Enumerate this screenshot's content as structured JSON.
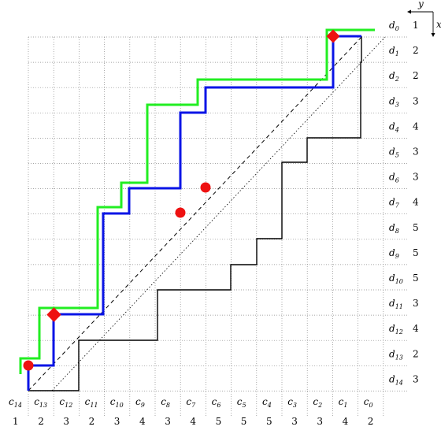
{
  "axes": {
    "y_label": "y",
    "x_label": "x"
  },
  "rows": [
    {
      "label": "d",
      "sub": "0",
      "value": "1"
    },
    {
      "label": "d",
      "sub": "1",
      "value": "2"
    },
    {
      "label": "d",
      "sub": "2",
      "value": "2"
    },
    {
      "label": "d",
      "sub": "3",
      "value": "3"
    },
    {
      "label": "d",
      "sub": "4",
      "value": "4"
    },
    {
      "label": "d",
      "sub": "5",
      "value": "3"
    },
    {
      "label": "d",
      "sub": "6",
      "value": "3"
    },
    {
      "label": "d",
      "sub": "7",
      "value": "4"
    },
    {
      "label": "d",
      "sub": "8",
      "value": "5"
    },
    {
      "label": "d",
      "sub": "9",
      "value": "5"
    },
    {
      "label": "d",
      "sub": "10",
      "value": "5"
    },
    {
      "label": "d",
      "sub": "11",
      "value": "3"
    },
    {
      "label": "d",
      "sub": "12",
      "value": "4"
    },
    {
      "label": "d",
      "sub": "13",
      "value": "2"
    },
    {
      "label": "d",
      "sub": "14",
      "value": "3"
    }
  ],
  "cols": [
    {
      "label": "c",
      "sub": "14",
      "value": "1"
    },
    {
      "label": "c",
      "sub": "13",
      "value": "2"
    },
    {
      "label": "c",
      "sub": "12",
      "value": "3"
    },
    {
      "label": "c",
      "sub": "11",
      "value": "2"
    },
    {
      "label": "c",
      "sub": "10",
      "value": "3"
    },
    {
      "label": "c",
      "sub": "9",
      "value": "4"
    },
    {
      "label": "c",
      "sub": "8",
      "value": "3"
    },
    {
      "label": "c",
      "sub": "7",
      "value": "4"
    },
    {
      "label": "c",
      "sub": "6",
      "value": "5"
    },
    {
      "label": "c",
      "sub": "5",
      "value": "5"
    },
    {
      "label": "c",
      "sub": "4",
      "value": "5"
    },
    {
      "label": "c",
      "sub": "3",
      "value": "3"
    },
    {
      "label": "c",
      "sub": "2",
      "value": "3"
    },
    {
      "label": "c",
      "sub": "1",
      "value": "4"
    },
    {
      "label": "c",
      "sub": "0",
      "value": "2"
    }
  ],
  "colors": {
    "green_path": "#22ee22",
    "blue_path": "#0a14e6",
    "black_path": "#000000",
    "markers": "#ee1111"
  }
}
